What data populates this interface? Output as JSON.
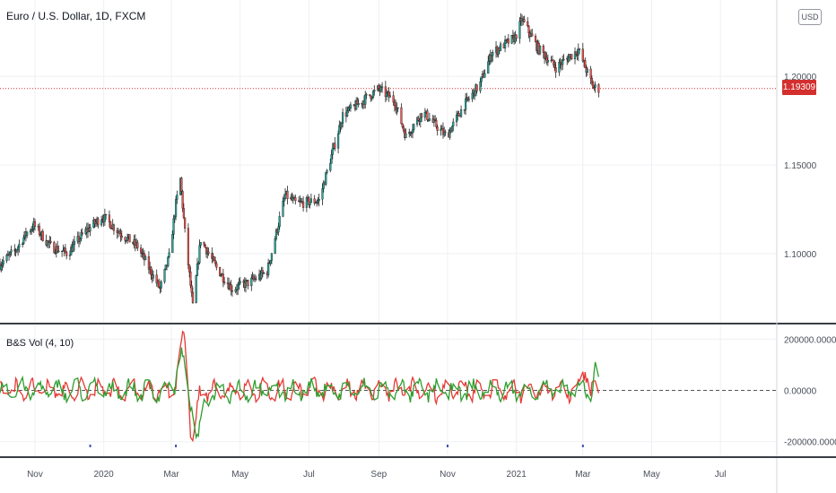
{
  "header": {
    "title": "Euro / U.S. Dollar, 1D, FXCM"
  },
  "currency_button": "USD",
  "last_price_label": "1.19309",
  "indicator": {
    "label": "B&S Vol (4, 10)"
  },
  "colors": {
    "up": "#26a69a",
    "down": "#ef5350",
    "buy_line": "#2e9e2e",
    "sell_line": "#e53935",
    "last_price": "#d32f2f",
    "signal_dot": "#3f51b5"
  },
  "chart_data": [
    {
      "type": "candlestick",
      "title": "Euro / U.S. Dollar, 1D, FXCM",
      "y_ticks": [
        "1.20000",
        "1.15000",
        "1.10000"
      ],
      "y_tick_values": [
        1.2,
        1.15,
        1.1
      ],
      "ylim": [
        1.062,
        1.238
      ],
      "x_tick_labels": [
        "Nov",
        "2020",
        "Mar",
        "May",
        "Jul",
        "Sep",
        "Nov",
        "2021",
        "Mar",
        "May",
        "Jul"
      ],
      "x_range": [
        "2019-10-01",
        "2021-08-20"
      ],
      "x_tick_dates": [
        "2019-11-01",
        "2020-01-01",
        "2020-03-01",
        "2020-05-01",
        "2020-07-01",
        "2020-09-01",
        "2020-11-01",
        "2021-01-01",
        "2021-03-01",
        "2021-05-01",
        "2021-07-01"
      ],
      "last_price": 1.19309,
      "close_path": [
        [
          "2019-10-01",
          1.094
        ],
        [
          "2019-10-15",
          1.102
        ],
        [
          "2019-10-25",
          1.112
        ],
        [
          "2019-10-31",
          1.116
        ],
        [
          "2019-11-15",
          1.104
        ],
        [
          "2019-11-30",
          1.1
        ],
        [
          "2019-12-15",
          1.112
        ],
        [
          "2019-12-31",
          1.121
        ],
        [
          "2020-01-15",
          1.112
        ],
        [
          "2020-01-31",
          1.104
        ],
        [
          "2020-02-10",
          1.092
        ],
        [
          "2020-02-20",
          1.08
        ],
        [
          "2020-02-28",
          1.098
        ],
        [
          "2020-03-05",
          1.128
        ],
        [
          "2020-03-09",
          1.142
        ],
        [
          "2020-03-13",
          1.112
        ],
        [
          "2020-03-20",
          1.07
        ],
        [
          "2020-03-27",
          1.108
        ],
        [
          "2020-04-10",
          1.092
        ],
        [
          "2020-04-24",
          1.08
        ],
        [
          "2020-05-10",
          1.084
        ],
        [
          "2020-05-25",
          1.09
        ],
        [
          "2020-06-10",
          1.133
        ],
        [
          "2020-06-20",
          1.128
        ],
        [
          "2020-07-10",
          1.13
        ],
        [
          "2020-07-31",
          1.178
        ],
        [
          "2020-08-15",
          1.185
        ],
        [
          "2020-09-01",
          1.193
        ],
        [
          "2020-09-15",
          1.186
        ],
        [
          "2020-09-25",
          1.166
        ],
        [
          "2020-10-10",
          1.18
        ],
        [
          "2020-10-31",
          1.166
        ],
        [
          "2020-11-15",
          1.183
        ],
        [
          "2020-11-30",
          1.196
        ],
        [
          "2020-12-10",
          1.213
        ],
        [
          "2020-12-31",
          1.222
        ],
        [
          "2021-01-06",
          1.232
        ],
        [
          "2021-01-20",
          1.216
        ],
        [
          "2021-02-05",
          1.205
        ],
        [
          "2021-02-25",
          1.215
        ],
        [
          "2021-03-10",
          1.194
        ],
        [
          "2021-03-15",
          1.193
        ]
      ]
    },
    {
      "type": "line",
      "title": "B&S Vol (4, 10)",
      "y_ticks": [
        "200000.00000",
        "0.00000",
        "-200000.00000"
      ],
      "y_tick_values": [
        200000,
        0,
        -200000
      ],
      "ylim": [
        -250000,
        250000
      ],
      "series": [
        {
          "role": "buy-volume",
          "color": "#2e9e2e"
        },
        {
          "role": "sell-volume",
          "color": "#e53935"
        }
      ],
      "signal_dates": [
        "2019-12-20",
        "2020-03-05",
        "2020-11-01",
        "2021-03-01"
      ]
    }
  ]
}
